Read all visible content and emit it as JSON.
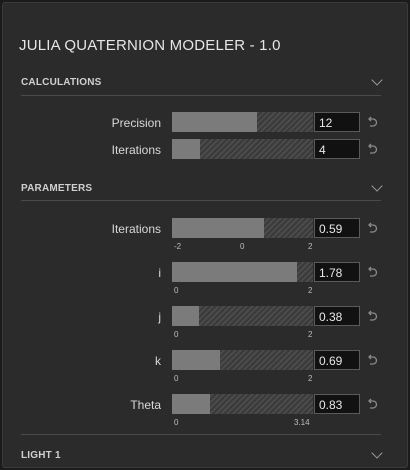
{
  "app_title": "JULIA QUATERNION MODELER - 1.0",
  "colors": {
    "panel_bg": "#2b2b2b",
    "slider_fill": "#7b7b7b",
    "value_bg": "#111111"
  },
  "sections": {
    "calculations": {
      "label": "CALCULATIONS",
      "params": {
        "precision": {
          "label": "Precision",
          "value": "12",
          "fill": 0.6
        },
        "iterations": {
          "label": "Iterations",
          "value": "4",
          "fill": 0.2
        }
      }
    },
    "parameters": {
      "label": "PARAMETERS",
      "params": {
        "iterations": {
          "label": "Iterations",
          "value": "0.59",
          "fill": 0.65,
          "ticks": [
            "-2",
            "0",
            "2"
          ]
        },
        "i": {
          "label": "i",
          "value": "1.78",
          "fill": 0.89,
          "ticks": [
            "0",
            "2"
          ]
        },
        "j": {
          "label": "j",
          "value": "0.38",
          "fill": 0.19,
          "ticks": [
            "0",
            "2"
          ]
        },
        "k": {
          "label": "k",
          "value": "0.69",
          "fill": 0.34,
          "ticks": [
            "0",
            "2"
          ]
        },
        "theta": {
          "label": "Theta",
          "value": "0.83",
          "fill": 0.27,
          "ticks": [
            "0",
            "3.14"
          ]
        }
      }
    },
    "light1": {
      "label": "LIGHT 1"
    }
  },
  "icons": {
    "collapse": "chevron-down-icon",
    "reset": "reset-icon"
  }
}
